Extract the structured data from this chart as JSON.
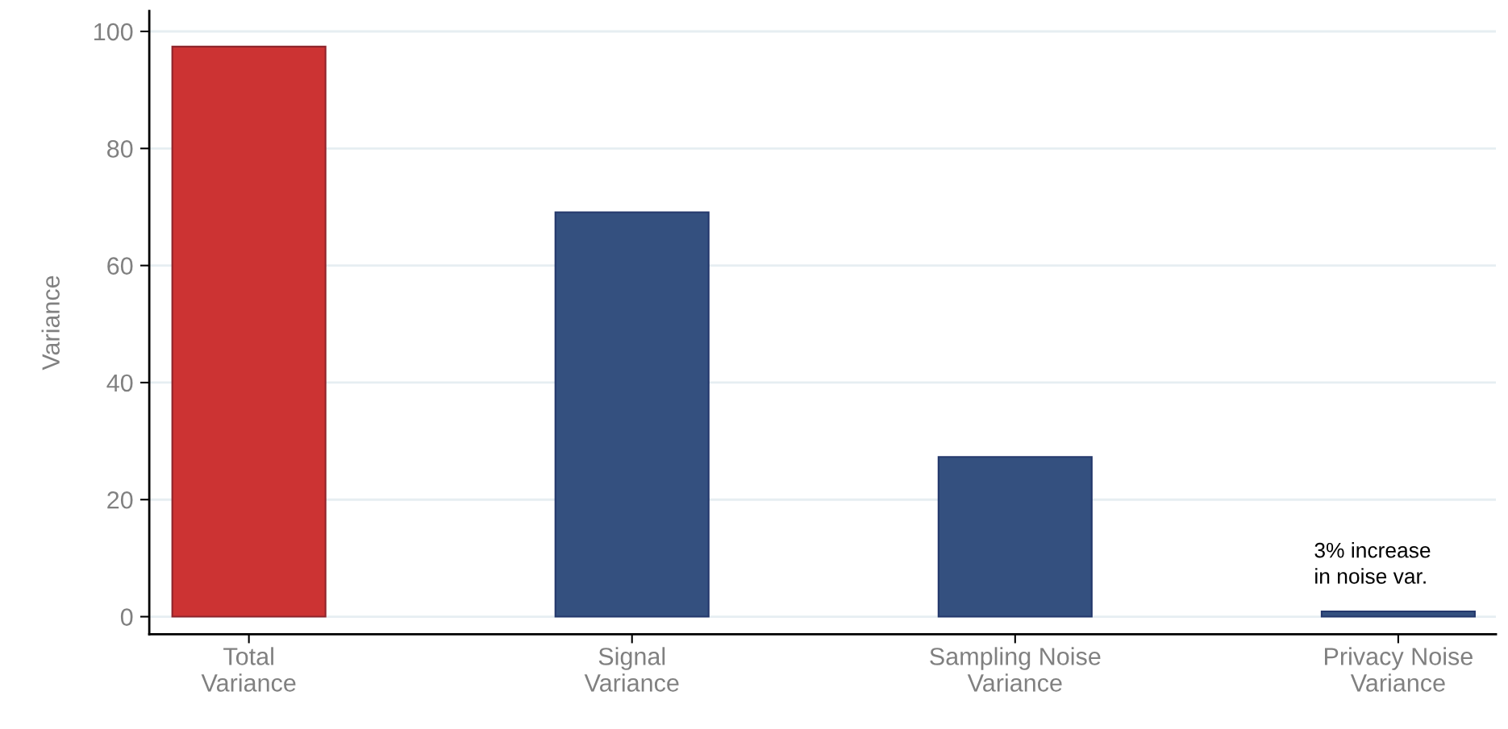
{
  "chart_data": {
    "type": "bar",
    "ylabel": "Variance",
    "categories": [
      "Total\nVariance",
      "Signal\nVariance",
      "Sampling Noise\nVariance",
      "Privacy Noise\nVariance"
    ],
    "values": [
      97.4,
      69.1,
      27.3,
      0.9
    ],
    "colors": [
      "#cc3333",
      "#34507f",
      "#34507f",
      "#34507f"
    ],
    "ylim": [
      -3,
      103.5
    ],
    "yticks": [
      0,
      20,
      40,
      60,
      80,
      100
    ],
    "grid": "y",
    "annotations": [
      "3% increase\nin noise var."
    ]
  }
}
